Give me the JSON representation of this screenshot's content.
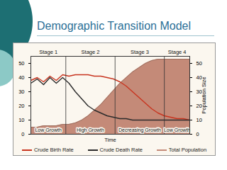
{
  "chart_data": {
    "type": "line",
    "title": "Demographic Transition Model",
    "xlabel": "Time",
    "y2label": "Population Size",
    "x": [
      0,
      4,
      8,
      12,
      16,
      20,
      24,
      28,
      32,
      36,
      40,
      44,
      48,
      52,
      56,
      60,
      64,
      68,
      72,
      76,
      80,
      84,
      88,
      92,
      96,
      100
    ],
    "xlim": [
      0,
      100
    ],
    "xticks": [],
    "ylim": [
      0,
      55
    ],
    "yticks": [
      0,
      10,
      20,
      30,
      40,
      50
    ],
    "y2lim": [
      0,
      55
    ],
    "y2ticks": [
      0,
      10,
      20,
      30,
      40,
      50
    ],
    "grid": false,
    "legend": "bottom",
    "stage_boundaries": [
      22,
      53,
      84
    ],
    "stages": [
      {
        "label": "Stage 1",
        "phase": "Low Growth"
      },
      {
        "label": "Stage 2",
        "phase": "High Growth"
      },
      {
        "label": "Stage 3",
        "phase": "Decreasing Growth"
      },
      {
        "label": "Stage 4",
        "phase": "Low Growth"
      }
    ],
    "series": [
      {
        "name": "Crude Birth Rate",
        "type": "line",
        "color": "#c8341f",
        "values": [
          38,
          40,
          37,
          41,
          38,
          42,
          41,
          42,
          42,
          42,
          41,
          41,
          40,
          39,
          37,
          34,
          30,
          26,
          22,
          18,
          15,
          13,
          12,
          11,
          11,
          10
        ]
      },
      {
        "name": "Crude Death Rate",
        "type": "line",
        "color": "#2b2b2b",
        "values": [
          36,
          39,
          35,
          40,
          36,
          40,
          36,
          30,
          25,
          20,
          17,
          15,
          13,
          12,
          11,
          11,
          10,
          10,
          10,
          10,
          10,
          10,
          10,
          10,
          10,
          10
        ]
      },
      {
        "name": "Total Population",
        "type": "area",
        "axis": "y2",
        "color": "#c48a78",
        "values": [
          5,
          5,
          6,
          6,
          6,
          7,
          7,
          8,
          10,
          13,
          17,
          21,
          26,
          31,
          36,
          40,
          44,
          47,
          50,
          52,
          53,
          53,
          53,
          53,
          53,
          53
        ]
      }
    ]
  }
}
